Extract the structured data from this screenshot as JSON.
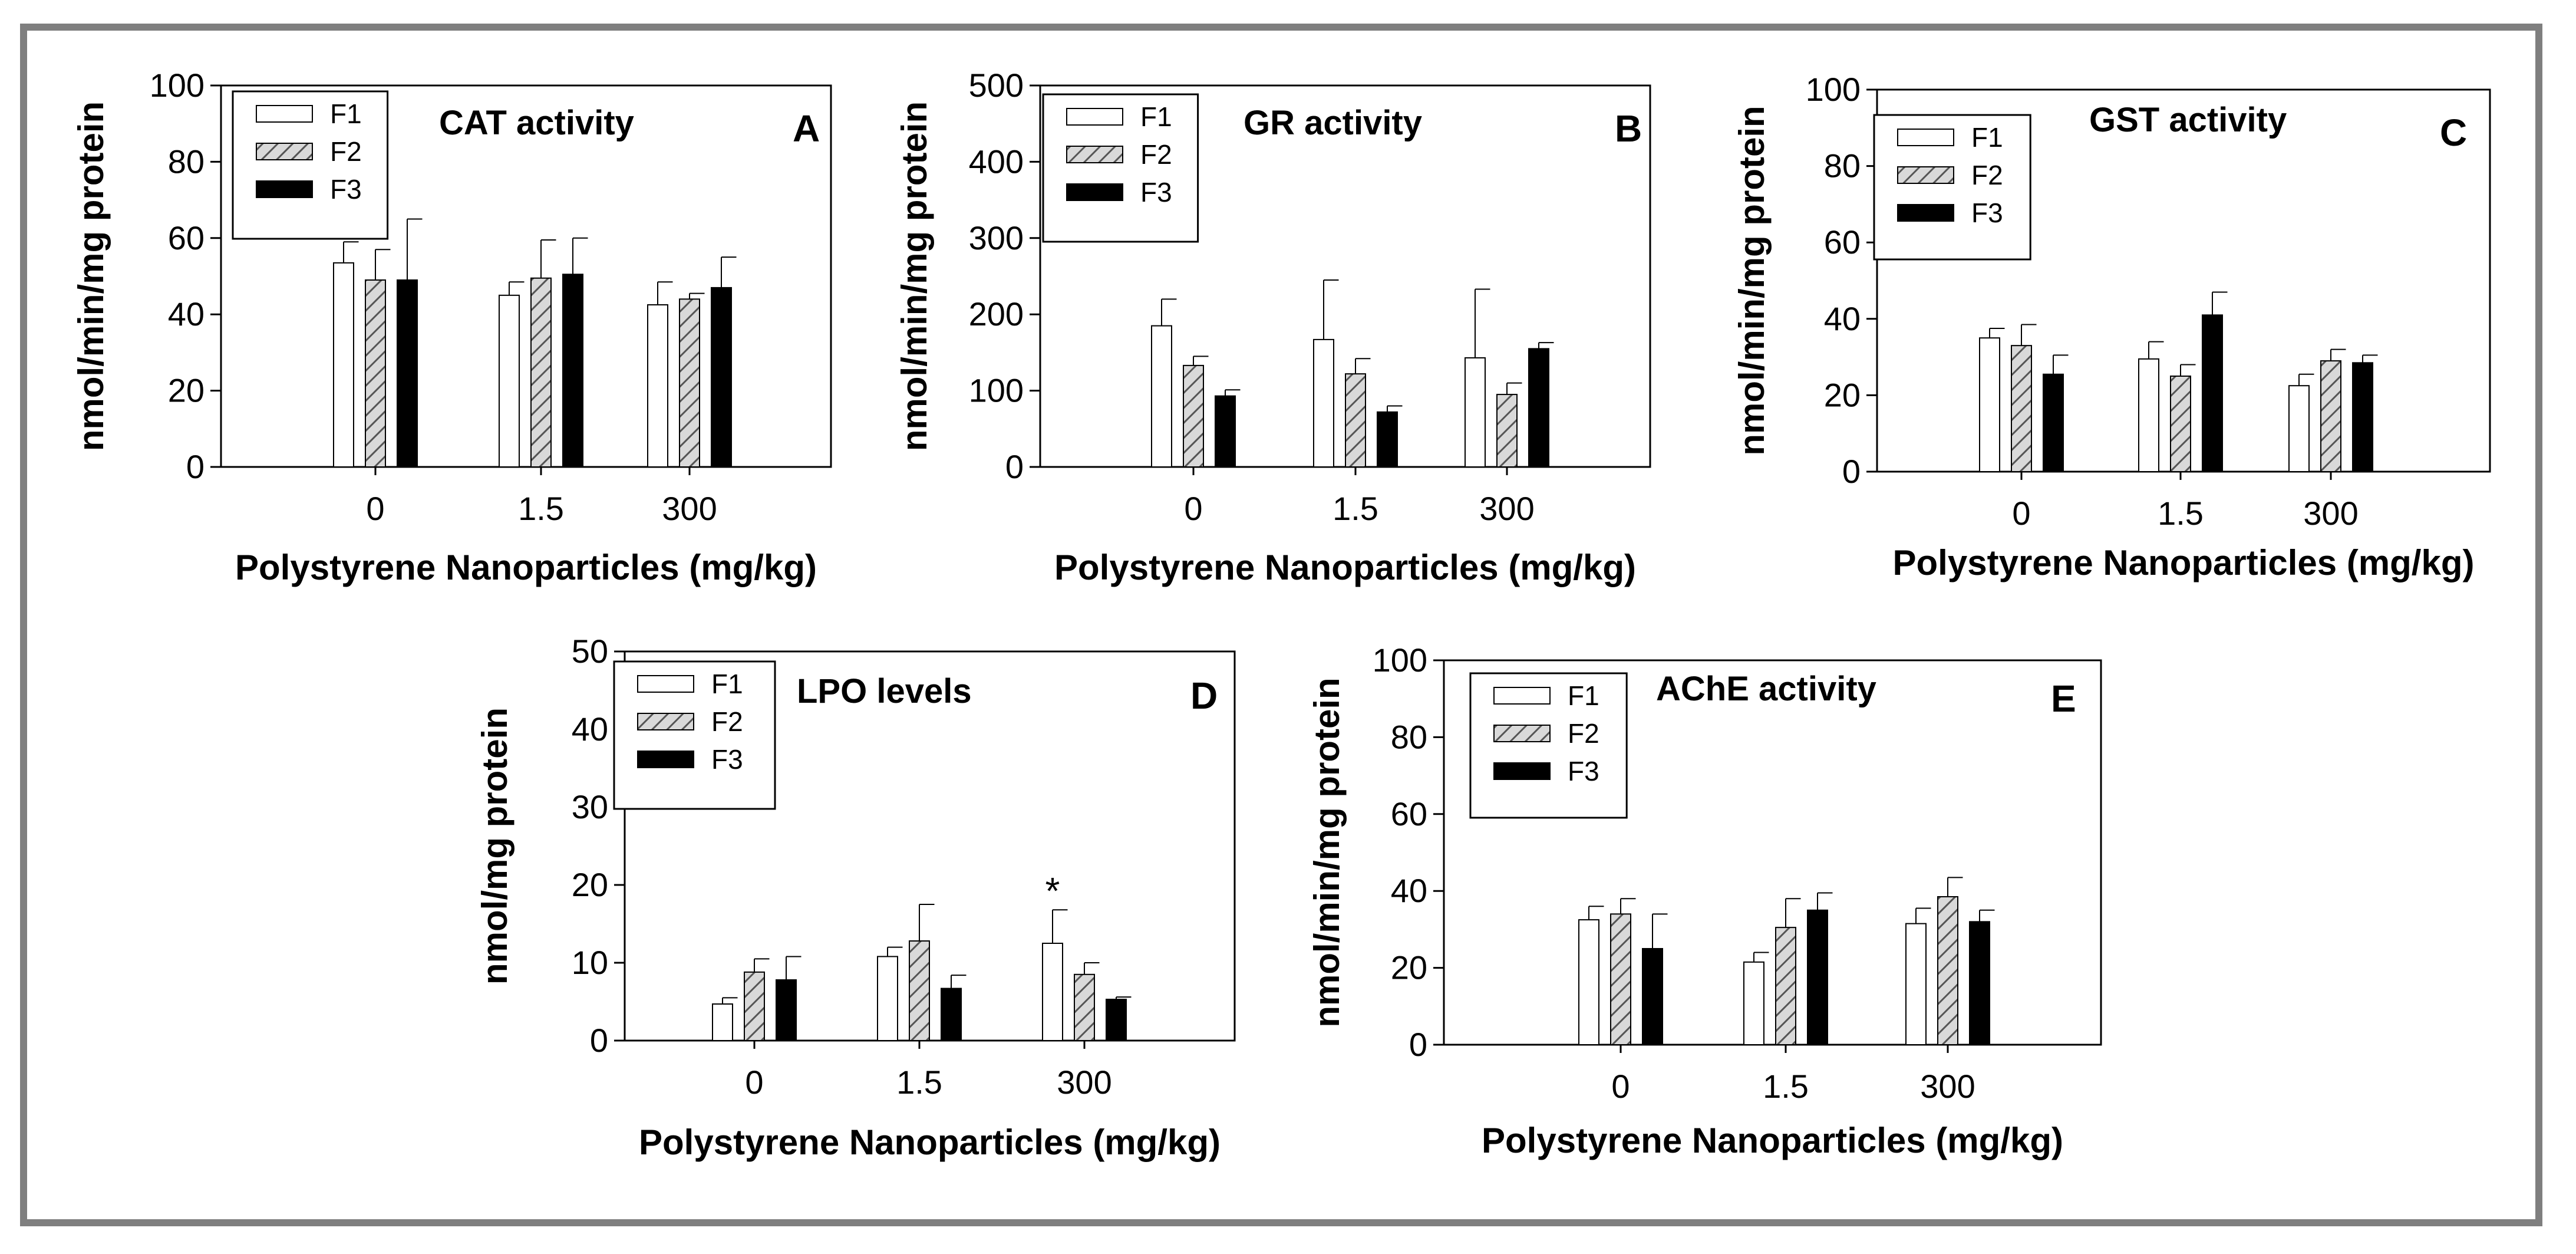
{
  "chart_data": [
    {
      "type": "bar",
      "panel": "A",
      "title": "CAT activity",
      "ylabel": "nmol/min/mg protein",
      "xlabel": "Polystyrene Nanoparticles (mg/kg)",
      "categories": [
        "0",
        "1.5",
        "300"
      ],
      "ylim": [
        0,
        100
      ],
      "yticks": [
        0,
        20,
        40,
        60,
        80,
        100
      ],
      "legend_position": "top-left",
      "series": [
        {
          "name": "F1",
          "values": [
            53.5,
            45,
            42.5
          ],
          "errors": [
            5.5,
            3.5,
            6
          ]
        },
        {
          "name": "F2",
          "values": [
            49,
            49.5,
            44
          ],
          "errors": [
            8,
            10,
            1.5
          ]
        },
        {
          "name": "F3",
          "values": [
            49,
            50.5,
            47
          ],
          "errors": [
            16,
            9.5,
            8
          ]
        }
      ],
      "annotations": []
    },
    {
      "type": "bar",
      "panel": "B",
      "title": "GR activity",
      "ylabel": "nmol/min/mg protein",
      "xlabel": "Polystyrene Nanoparticles (mg/kg)",
      "categories": [
        "0",
        "1.5",
        "300"
      ],
      "ylim": [
        0,
        500
      ],
      "yticks": [
        0,
        100,
        200,
        300,
        400,
        500
      ],
      "legend_position": "top-left",
      "series": [
        {
          "name": "F1",
          "values": [
            185,
            167,
            143
          ],
          "errors": [
            35,
            78,
            90
          ]
        },
        {
          "name": "F2",
          "values": [
            133,
            122,
            95
          ],
          "errors": [
            12,
            20,
            15
          ]
        },
        {
          "name": "F3",
          "values": [
            93,
            72,
            155
          ],
          "errors": [
            8,
            8,
            8
          ]
        }
      ],
      "annotations": []
    },
    {
      "type": "bar",
      "panel": "C",
      "title": "GST activity",
      "ylabel": "nmol/min/mg protein",
      "xlabel": "Polystyrene Nanoparticles (mg/kg)",
      "categories": [
        "0",
        "1.5",
        "300"
      ],
      "ylim": [
        0,
        100
      ],
      "yticks": [
        0,
        20,
        40,
        60,
        80,
        100
      ],
      "legend_position": "top-left",
      "series": [
        {
          "name": "F1",
          "values": [
            35,
            29.5,
            22.5
          ],
          "errors": [
            2.5,
            4.5,
            3
          ]
        },
        {
          "name": "F2",
          "values": [
            33,
            25,
            29
          ],
          "errors": [
            5.5,
            3,
            3
          ]
        },
        {
          "name": "F3",
          "values": [
            25.5,
            41,
            28.5
          ],
          "errors": [
            5,
            6,
            2
          ]
        }
      ],
      "annotations": []
    },
    {
      "type": "bar",
      "panel": "D",
      "title": "LPO levels",
      "ylabel": "nmol/mg protein",
      "xlabel": "Polystyrene Nanoparticles (mg/kg)",
      "categories": [
        "0",
        "1.5",
        "300"
      ],
      "ylim": [
        0,
        50
      ],
      "yticks": [
        0,
        10,
        20,
        30,
        40,
        50
      ],
      "legend_position": "top-left",
      "series": [
        {
          "name": "F1",
          "values": [
            4.7,
            10.8,
            12.5
          ],
          "errors": [
            0.8,
            1.2,
            4.3
          ]
        },
        {
          "name": "F2",
          "values": [
            8.8,
            12.8,
            8.5
          ],
          "errors": [
            1.7,
            4.7,
            1.5
          ]
        },
        {
          "name": "F3",
          "values": [
            7.8,
            6.7,
            5.3
          ],
          "errors": [
            3,
            1.7,
            0.3
          ]
        }
      ],
      "annotations": [
        {
          "text": "*",
          "category": "300",
          "series": "F1"
        }
      ]
    },
    {
      "type": "bar",
      "panel": "E",
      "title": "AChE activity",
      "ylabel": "nmol/min/mg protein",
      "xlabel": "Polystyrene Nanoparticles (mg/kg)",
      "categories": [
        "0",
        "1.5",
        "300"
      ],
      "ylim": [
        0,
        100
      ],
      "yticks": [
        0,
        20,
        40,
        60,
        80,
        100
      ],
      "legend_position": "top-left",
      "series": [
        {
          "name": "F1",
          "values": [
            32.5,
            21.5,
            31.5
          ],
          "errors": [
            3.5,
            2.5,
            4
          ]
        },
        {
          "name": "F2",
          "values": [
            34,
            30.5,
            38.5
          ],
          "errors": [
            4,
            7.5,
            5
          ]
        },
        {
          "name": "F3",
          "values": [
            25,
            35,
            32
          ],
          "errors": [
            9,
            4.5,
            3
          ]
        }
      ],
      "annotations": []
    }
  ]
}
